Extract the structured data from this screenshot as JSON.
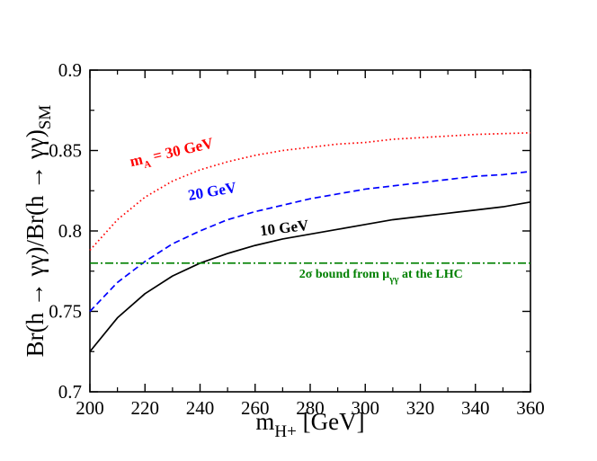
{
  "chart_data": {
    "type": "line",
    "title": "",
    "xlabel": {
      "main": "m",
      "sub": "H+",
      "unit": " [GeV]"
    },
    "ylabel": {
      "main": "Br(h → γγ)/Br(h → γγ)",
      "sub": "SM"
    },
    "xlim": [
      200,
      360
    ],
    "ylim": [
      0.7,
      0.9
    ],
    "xticks": [
      200,
      220,
      240,
      260,
      280,
      300,
      320,
      340,
      360
    ],
    "xtick_labels": [
      "200",
      "220",
      "240",
      "260",
      "280",
      "300",
      "320",
      "340",
      "360"
    ],
    "yticks": [
      0.7,
      0.75,
      0.8,
      0.85,
      0.9
    ],
    "ytick_labels": [
      "0.7",
      "0.75",
      "0.8",
      "0.85",
      "0.9"
    ],
    "grid": false,
    "x": [
      200,
      210,
      220,
      230,
      240,
      250,
      260,
      270,
      280,
      290,
      300,
      310,
      320,
      330,
      340,
      350,
      360
    ],
    "series": [
      {
        "name": "m_A = 30 GeV",
        "color": "#ff0000",
        "style": "dotted",
        "values": [
          0.788,
          0.807,
          0.821,
          0.831,
          0.838,
          0.843,
          0.847,
          0.85,
          0.852,
          0.854,
          0.855,
          0.857,
          0.858,
          0.859,
          0.86,
          0.8605,
          0.861
        ]
      },
      {
        "name": "20 GeV",
        "color": "#0000ff",
        "style": "dashed",
        "values": [
          0.75,
          0.768,
          0.781,
          0.792,
          0.8,
          0.807,
          0.812,
          0.816,
          0.82,
          0.823,
          0.826,
          0.828,
          0.83,
          0.832,
          0.834,
          0.835,
          0.837
        ]
      },
      {
        "name": "10 GeV",
        "color": "#000000",
        "style": "solid",
        "values": [
          0.725,
          0.746,
          0.761,
          0.772,
          0.78,
          0.786,
          0.791,
          0.795,
          0.798,
          0.801,
          0.804,
          0.807,
          0.809,
          0.811,
          0.813,
          0.815,
          0.818
        ]
      },
      {
        "name": "2σ bound",
        "color": "#008000",
        "style": "dashdot",
        "values": [
          0.78,
          0.78,
          0.78,
          0.78,
          0.78,
          0.78,
          0.78,
          0.78,
          0.78,
          0.78,
          0.78,
          0.78,
          0.78,
          0.78,
          0.78,
          0.78,
          0.78
        ]
      }
    ],
    "annotations": [
      {
        "id": "label-30gev",
        "main": "m",
        "sub": "A",
        "rest": " = 30 GeV",
        "color": "#ff0000",
        "x": 215,
        "y": 0.84,
        "rotate": -13
      },
      {
        "id": "label-20gev",
        "text": "20 GeV",
        "color": "#0000ff",
        "x": 236,
        "y": 0.819,
        "rotate": -10
      },
      {
        "id": "label-10gev",
        "text": "10 GeV",
        "color": "#000000",
        "x": 262,
        "y": 0.797,
        "rotate": -7
      },
      {
        "id": "label-bound",
        "prefix": "2σ bound from  ",
        "mu": "μ",
        "sub": "γγ",
        "suffix": " at the LHC",
        "color": "#008000",
        "x": 276,
        "y": 0.771,
        "rotate": 0
      }
    ]
  }
}
